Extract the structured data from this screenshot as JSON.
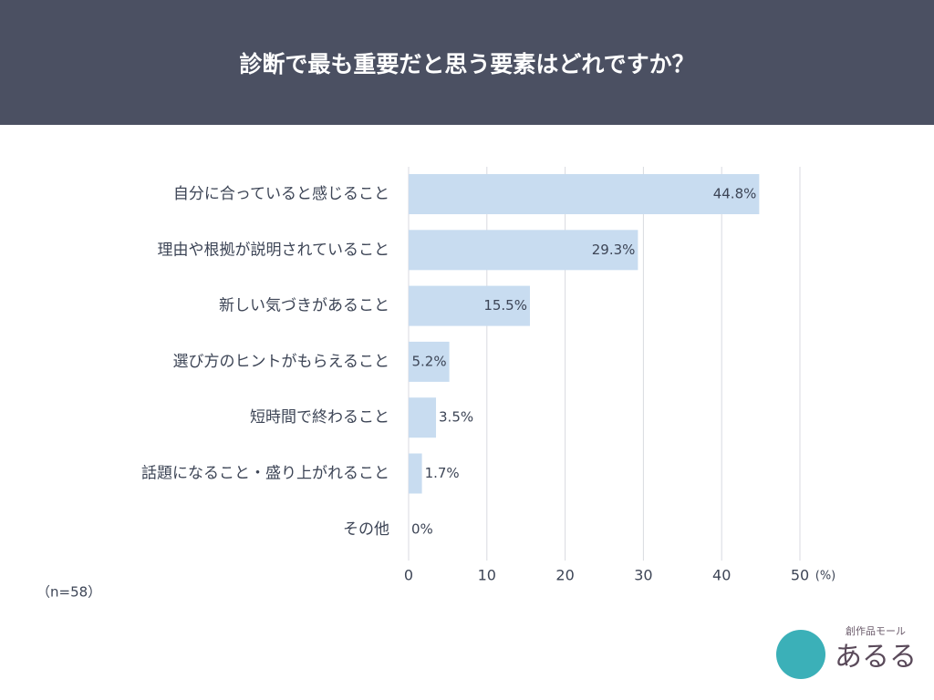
{
  "chart_data": {
    "type": "barh",
    "title": "診断で最も重要だと思う要素はどれですか？",
    "categories": [
      "自分に合っていると感じること",
      "理由や根拠が説明されていること",
      "新しい気づきがあること",
      "選び方のヒントがもらえること",
      "短時間で終わること",
      "話題になること・盛り上がれること",
      "その他"
    ],
    "values": [
      44.8,
      29.3,
      15.5,
      5.2,
      3.5,
      1.7,
      0
    ],
    "value_labels": [
      "44.8%",
      "29.3%",
      "15.5%",
      "5.2%",
      "3.5%",
      "1.7%",
      "0%"
    ],
    "color": "#c8dcf0",
    "xlim": [
      0,
      50
    ],
    "xticks": [
      0,
      10,
      20,
      30,
      40,
      50
    ],
    "xlabel": "(%)",
    "grid": true,
    "note": "（n=58）"
  },
  "logo": {
    "small": "創作品モール",
    "main": "あるる"
  }
}
